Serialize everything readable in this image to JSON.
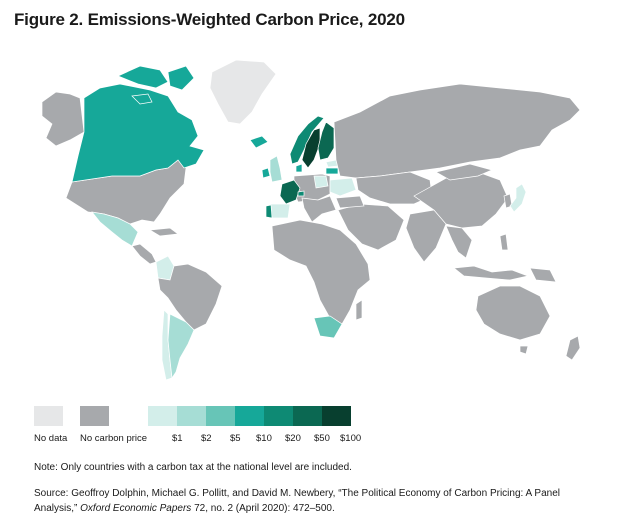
{
  "title": "Figure 2. Emissions-Weighted Carbon Price, 2020",
  "colors": {
    "no_data": "#e6e7e8",
    "no_carbon_price": "#a7a9ac",
    "p1": "#d3eeea",
    "p2": "#a6ddd5",
    "p5": "#67c5b7",
    "p10": "#16a899",
    "p20": "#0e8a74",
    "p50": "#0b6852",
    "p100": "#083f2f"
  },
  "legend": {
    "no_data": "No data",
    "no_carbon_price": "No carbon price",
    "bins": [
      "$1",
      "$2",
      "$5",
      "$10",
      "$20",
      "$50",
      "$100"
    ]
  },
  "note": "Note: Only countries with a carbon tax at the national level are included.",
  "source": {
    "prefix": "Source: Geoffroy Dolphin, Michael G. Pollitt, and David M. Newbery, “The Political Economy of Carbon Pricing: A Panel Analysis,”",
    "journal": "Oxford Economic Papers",
    "suffix": "72, no. 2 (April 2020): 472–500."
  },
  "regions": [
    {
      "name": "Canada",
      "category": "p10"
    },
    {
      "name": "Greenland",
      "category": "no_data"
    },
    {
      "name": "Iceland",
      "category": "p10"
    },
    {
      "name": "Ireland",
      "category": "p10"
    },
    {
      "name": "United Kingdom",
      "category": "p2"
    },
    {
      "name": "Norway",
      "category": "p20"
    },
    {
      "name": "Sweden",
      "category": "p100"
    },
    {
      "name": "Finland",
      "category": "p50"
    },
    {
      "name": "Denmark",
      "category": "p10"
    },
    {
      "name": "France",
      "category": "p50"
    },
    {
      "name": "Portugal",
      "category": "p20"
    },
    {
      "name": "Spain",
      "category": "p1"
    },
    {
      "name": "Switzerland",
      "category": "p20"
    },
    {
      "name": "Poland",
      "category": "p1"
    },
    {
      "name": "Ukraine",
      "category": "p1"
    },
    {
      "name": "Latvia",
      "category": "p10"
    },
    {
      "name": "Estonia",
      "category": "p1"
    },
    {
      "name": "Mexico",
      "category": "p2"
    },
    {
      "name": "Colombia",
      "category": "p1"
    },
    {
      "name": "Chile",
      "category": "p1"
    },
    {
      "name": "Argentina",
      "category": "p2"
    },
    {
      "name": "South Africa",
      "category": "p5"
    },
    {
      "name": "Japan",
      "category": "p1"
    },
    {
      "name": "United States",
      "category": "no_carbon_price"
    },
    {
      "name": "Russia",
      "category": "no_carbon_price"
    },
    {
      "name": "China",
      "category": "no_carbon_price"
    },
    {
      "name": "Brazil",
      "category": "no_carbon_price"
    },
    {
      "name": "Africa",
      "category": "no_carbon_price"
    },
    {
      "name": "Australia",
      "category": "no_carbon_price"
    },
    {
      "name": "India",
      "category": "no_carbon_price"
    }
  ]
}
